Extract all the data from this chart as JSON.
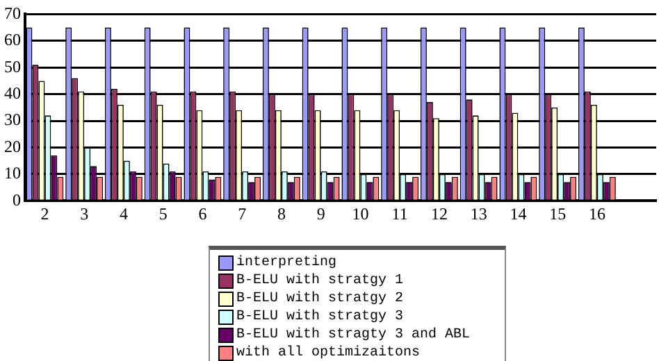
{
  "chart_data": {
    "type": "bar",
    "categories": [
      "2",
      "3",
      "4",
      "5",
      "6",
      "7",
      "8",
      "9",
      "10",
      "11",
      "12",
      "13",
      "14",
      "15",
      "16",
      null
    ],
    "series": [
      {
        "name": "interpreting",
        "color": "#9999ff",
        "values": [
          65,
          65,
          65,
          65,
          65,
          65,
          65,
          65,
          65,
          65,
          65,
          65,
          65,
          65,
          65,
          null
        ]
      },
      {
        "name": "B-ELU with stratgy 1",
        "color": "#993366",
        "values": [
          51,
          46,
          42,
          41,
          41,
          41,
          40,
          40,
          40,
          40,
          37,
          38,
          40,
          40,
          41,
          null
        ]
      },
      {
        "name": "B-ELU with stratgy 2",
        "color": "#ffffcc",
        "values": [
          45,
          41,
          36,
          36,
          34,
          34,
          34,
          34,
          34,
          34,
          31,
          32,
          33,
          35,
          36,
          null
        ]
      },
      {
        "name": "B-ELU with stratgy 3",
        "color": "#ccffff",
        "values": [
          32,
          20,
          15,
          14,
          11,
          11,
          11,
          11,
          10,
          10,
          10,
          10,
          10,
          10,
          10,
          null
        ]
      },
      {
        "name": "B-ELU with stragty 3 and ABL",
        "color": "#660066",
        "values": [
          17,
          13,
          11,
          11,
          8,
          7,
          7,
          7,
          7,
          7,
          7,
          7,
          7,
          7,
          7,
          null
        ]
      },
      {
        "name": "with all optimizaitons",
        "color": "#ff8080",
        "values": [
          9,
          9,
          9,
          9,
          9,
          9,
          9,
          9,
          9,
          9,
          9,
          9,
          9,
          9,
          9,
          null
        ]
      }
    ],
    "ylim": [
      0,
      70
    ],
    "yticks": [
      0,
      10,
      20,
      30,
      40,
      50,
      60,
      70
    ],
    "grid": "y",
    "legend": "bottom"
  }
}
